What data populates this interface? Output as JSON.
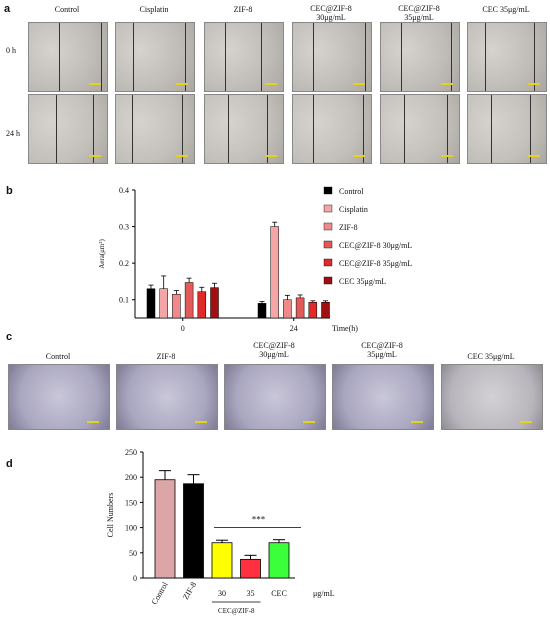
{
  "panel_letters": {
    "a": "a",
    "b": "b",
    "c": "c",
    "d": "d"
  },
  "panel_a": {
    "columns": [
      "Control",
      "Cisplatin",
      "ZIF-8",
      "CEC@ZIF-8\n30μg/mL",
      "CEC@ZIF-8\n35μg/mL",
      "CEC 35μg/mL"
    ],
    "rows": [
      "0 h",
      "24 h"
    ]
  },
  "panel_c": {
    "columns": [
      "Control",
      "ZIF-8",
      "CEC@ZIF-8\n30μg/mL",
      "CEC@ZIF-8\n35μg/mL",
      "CEC 35μg/mL"
    ]
  },
  "colors": {
    "control": "#000000",
    "cisplatin": "#f4a5a5",
    "zif8": "#f08a8a",
    "cec30": "#e35a5a",
    "cec35": "#e02a2a",
    "cec": "#a01010",
    "d_control": "#dca5a8",
    "d_zif8": "#000000",
    "d_cec30": "#ffff00",
    "d_cec35": "#ff3040",
    "d_cec": "#3aff3a"
  },
  "chart_data": [
    {
      "type": "bar",
      "panel": "b",
      "categories": [
        "0",
        "24"
      ],
      "xlabel": "Time(h)",
      "ylabel": "Aera(μm²)",
      "ylim": [
        0.05,
        0.4
      ],
      "yticks": [
        "0.1",
        "0.2",
        "0.3",
        "0.4"
      ],
      "series": [
        {
          "name": "Control",
          "values": [
            0.13,
            0.09
          ],
          "errors": [
            0.01,
            0.005
          ]
        },
        {
          "name": "Cisplatin",
          "values": [
            0.13,
            0.3
          ],
          "errors": [
            0.035,
            0.012
          ]
        },
        {
          "name": "ZIF-8",
          "values": [
            0.115,
            0.1
          ],
          "errors": [
            0.01,
            0.012
          ]
        },
        {
          "name": "CEC@ZIF-8 30μg/mL",
          "values": [
            0.147,
            0.105
          ],
          "errors": [
            0.012,
            0.008
          ]
        },
        {
          "name": "CEC@ZIF-8  35μg/mL",
          "values": [
            0.122,
            0.093
          ],
          "errors": [
            0.012,
            0.004
          ]
        },
        {
          "name": "CEC 35μg/mL",
          "values": [
            0.133,
            0.093
          ],
          "errors": [
            0.012,
            0.004
          ]
        }
      ]
    },
    {
      "type": "bar",
      "panel": "d",
      "categories": [
        "Control",
        "ZIF-8",
        "30",
        "35",
        "CEC"
      ],
      "group_label": "CEC@ZIF-8",
      "unit_label": "μg/mL",
      "ylabel": "Cell  Numbers",
      "ylim": [
        0,
        250
      ],
      "yticks": [
        "0",
        "50",
        "100",
        "150",
        "200",
        "250"
      ],
      "values": [
        195,
        187,
        70,
        37,
        70
      ],
      "errors": [
        18,
        18,
        5,
        8,
        6
      ],
      "significance": "***"
    }
  ]
}
